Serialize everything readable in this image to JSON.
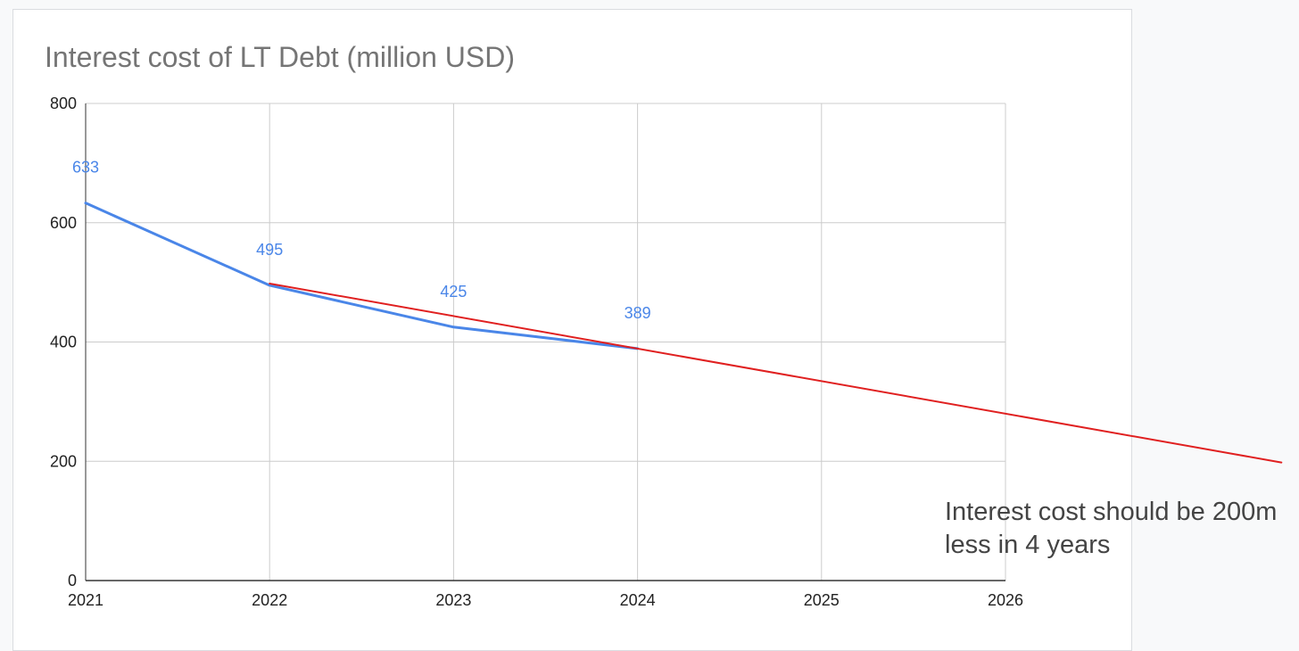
{
  "chart_data": {
    "type": "line",
    "title": "Interest cost of LT Debt (million USD)",
    "xlabel": "",
    "ylabel": "",
    "categories": [
      "2021",
      "2022",
      "2023",
      "2024",
      "2025",
      "2026"
    ],
    "xlim": [
      2021,
      2026
    ],
    "ylim": [
      0,
      800
    ],
    "yticks": [
      0,
      200,
      400,
      600,
      800
    ],
    "grid": true,
    "legend": "none",
    "series": [
      {
        "x": [
          2021,
          2022,
          2023,
          2024
        ],
        "values": [
          633,
          495,
          425,
          389
        ],
        "data_labels": [
          "633",
          "495",
          "425",
          "389"
        ],
        "color": "#4a86e8"
      },
      {
        "x": [
          2022,
          2027.5
        ],
        "values": [
          498,
          198
        ],
        "color": "#e02020"
      }
    ],
    "annotation": {
      "lines": [
        "Interest cost should be 200m",
        "less in 4 years"
      ]
    }
  }
}
